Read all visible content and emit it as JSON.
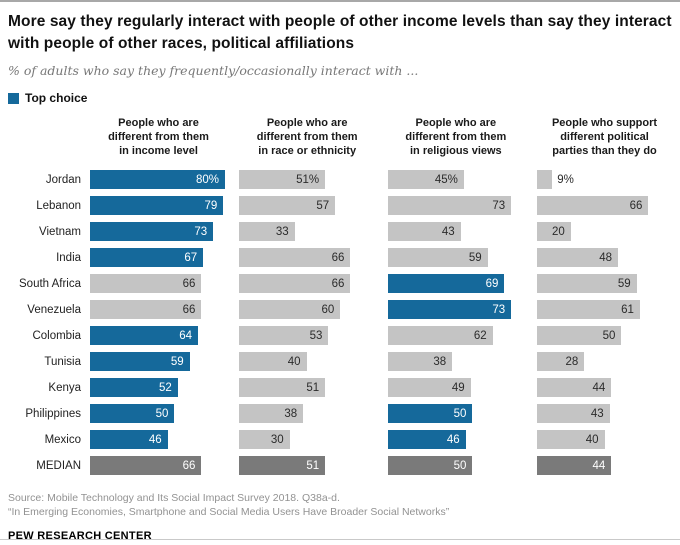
{
  "header": {
    "title": "More say they regularly interact with people of other income levels than say they interact with people of other races, political affiliations",
    "subtitle": "% of adults who say they frequently/occasionally interact with ...",
    "legend": {
      "label": "Top choice"
    }
  },
  "chart_data": {
    "type": "bar",
    "orientation": "horizontal",
    "value_unit": "percent",
    "axis_max": 80,
    "grid": false,
    "legend_position": "top-left",
    "colors": {
      "top_choice": "#15699B",
      "default": "#C4C4C4",
      "median": "#7A7A7A",
      "value_on_dark": "#FFFFFF",
      "value_on_light": "#2B2B2B"
    },
    "columns": [
      {
        "key": "income",
        "lines": [
          "People who are",
          "different from them",
          "in income level"
        ]
      },
      {
        "key": "race",
        "lines": [
          "People who are",
          "different from them",
          "in race or ethnicity"
        ]
      },
      {
        "key": "religion",
        "lines": [
          "People who are",
          "different from them",
          "in religious views"
        ]
      },
      {
        "key": "political",
        "lines": [
          "People who support",
          "different political",
          "parties than they do"
        ]
      }
    ],
    "rows": [
      {
        "country": "Jordan",
        "is_median": false,
        "bars": [
          {
            "value": 80,
            "label": "80%",
            "top_choice": true
          },
          {
            "value": 51,
            "label": "51%",
            "top_choice": false
          },
          {
            "value": 45,
            "label": "45%",
            "top_choice": false
          },
          {
            "value": 9,
            "label": "9%",
            "top_choice": false
          }
        ]
      },
      {
        "country": "Lebanon",
        "is_median": false,
        "bars": [
          {
            "value": 79,
            "label": "79",
            "top_choice": true
          },
          {
            "value": 57,
            "label": "57",
            "top_choice": false
          },
          {
            "value": 73,
            "label": "73",
            "top_choice": false
          },
          {
            "value": 66,
            "label": "66",
            "top_choice": false
          }
        ]
      },
      {
        "country": "Vietnam",
        "is_median": false,
        "bars": [
          {
            "value": 73,
            "label": "73",
            "top_choice": true
          },
          {
            "value": 33,
            "label": "33",
            "top_choice": false
          },
          {
            "value": 43,
            "label": "43",
            "top_choice": false
          },
          {
            "value": 20,
            "label": "20",
            "top_choice": false
          }
        ]
      },
      {
        "country": "India",
        "is_median": false,
        "bars": [
          {
            "value": 67,
            "label": "67",
            "top_choice": true
          },
          {
            "value": 66,
            "label": "66",
            "top_choice": false
          },
          {
            "value": 59,
            "label": "59",
            "top_choice": false
          },
          {
            "value": 48,
            "label": "48",
            "top_choice": false
          }
        ]
      },
      {
        "country": "South Africa",
        "is_median": false,
        "bars": [
          {
            "value": 66,
            "label": "66",
            "top_choice": false
          },
          {
            "value": 66,
            "label": "66",
            "top_choice": false
          },
          {
            "value": 69,
            "label": "69",
            "top_choice": true
          },
          {
            "value": 59,
            "label": "59",
            "top_choice": false
          }
        ]
      },
      {
        "country": "Venezuela",
        "is_median": false,
        "bars": [
          {
            "value": 66,
            "label": "66",
            "top_choice": false
          },
          {
            "value": 60,
            "label": "60",
            "top_choice": false
          },
          {
            "value": 73,
            "label": "73",
            "top_choice": true
          },
          {
            "value": 61,
            "label": "61",
            "top_choice": false
          }
        ]
      },
      {
        "country": "Colombia",
        "is_median": false,
        "bars": [
          {
            "value": 64,
            "label": "64",
            "top_choice": true
          },
          {
            "value": 53,
            "label": "53",
            "top_choice": false
          },
          {
            "value": 62,
            "label": "62",
            "top_choice": false
          },
          {
            "value": 50,
            "label": "50",
            "top_choice": false
          }
        ]
      },
      {
        "country": "Tunisia",
        "is_median": false,
        "bars": [
          {
            "value": 59,
            "label": "59",
            "top_choice": true
          },
          {
            "value": 40,
            "label": "40",
            "top_choice": false
          },
          {
            "value": 38,
            "label": "38",
            "top_choice": false
          },
          {
            "value": 28,
            "label": "28",
            "top_choice": false
          }
        ]
      },
      {
        "country": "Kenya",
        "is_median": false,
        "bars": [
          {
            "value": 52,
            "label": "52",
            "top_choice": true
          },
          {
            "value": 51,
            "label": "51",
            "top_choice": false
          },
          {
            "value": 49,
            "label": "49",
            "top_choice": false
          },
          {
            "value": 44,
            "label": "44",
            "top_choice": false
          }
        ]
      },
      {
        "country": "Philippines",
        "is_median": false,
        "bars": [
          {
            "value": 50,
            "label": "50",
            "top_choice": true
          },
          {
            "value": 38,
            "label": "38",
            "top_choice": false
          },
          {
            "value": 50,
            "label": "50",
            "top_choice": true
          },
          {
            "value": 43,
            "label": "43",
            "top_choice": false
          }
        ]
      },
      {
        "country": "Mexico",
        "is_median": false,
        "bars": [
          {
            "value": 46,
            "label": "46",
            "top_choice": true
          },
          {
            "value": 30,
            "label": "30",
            "top_choice": false
          },
          {
            "value": 46,
            "label": "46",
            "top_choice": true
          },
          {
            "value": 40,
            "label": "40",
            "top_choice": false
          }
        ]
      },
      {
        "country": "MEDIAN",
        "is_median": true,
        "bars": [
          {
            "value": 66,
            "label": "66",
            "top_choice": false
          },
          {
            "value": 51,
            "label": "51",
            "top_choice": false
          },
          {
            "value": 50,
            "label": "50",
            "top_choice": false
          },
          {
            "value": 44,
            "label": "44",
            "top_choice": false
          }
        ]
      }
    ]
  },
  "footer": {
    "source_line1": "Source: Mobile Technology and Its Social Impact Survey 2018. Q38a-d.",
    "source_line2": "“In Emerging Economies, Smartphone and Social Media Users Have Broader Social Networks”",
    "brand": "PEW RESEARCH CENTER"
  }
}
